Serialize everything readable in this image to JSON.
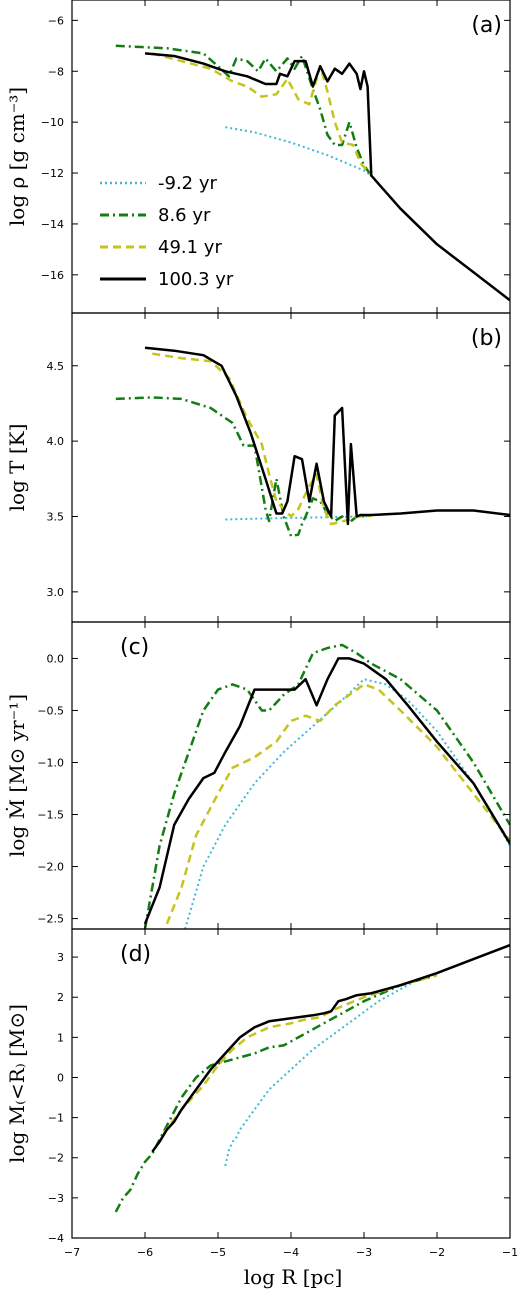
{
  "chart_data": {
    "type": "line",
    "xlabel": "log R [pc]",
    "xlim": [
      -7,
      -1
    ],
    "x_ticks": [
      "−7",
      "−6",
      "−5",
      "−4",
      "−3",
      "−2",
      "−1"
    ],
    "legend": {
      "placement": "inside panel (a), lower-left",
      "entries": [
        "-9.2 yr",
        "8.6 yr",
        "49.1 yr",
        "100.3 yr"
      ]
    },
    "series_styles": [
      {
        "name": "-9.2 yr",
        "color": "#3fb8d8",
        "dash": "dotted"
      },
      {
        "name": "8.6 yr",
        "color": "#137d13",
        "dash": "dashdot"
      },
      {
        "name": "49.1 yr",
        "color": "#c4c41c",
        "dash": "dashed"
      },
      {
        "name": "100.3 yr",
        "color": "#000000",
        "dash": "solid"
      }
    ],
    "panels": [
      {
        "id": "a",
        "tag": "(a)",
        "ylabel": "log ρ [g cm⁻³]",
        "ylim": [
          -17.5,
          -5.2
        ],
        "yticks": [
          -16,
          -14,
          -12,
          -10,
          -8,
          -6
        ],
        "ytick_labels": [
          "−16",
          "−14",
          "−12",
          "−10",
          "−8",
          "−6"
        ],
        "series": [
          {
            "name": "-9.2 yr",
            "x": [
              -4.9,
              -4.5,
              -4.0,
              -3.5,
              -3.0,
              -2.9
            ],
            "y": [
              -10.2,
              -10.4,
              -10.8,
              -11.3,
              -11.9,
              -12.1
            ]
          },
          {
            "name": "8.6 yr",
            "x": [
              -6.4,
              -5.7,
              -5.2,
              -5.0,
              -4.85,
              -4.75,
              -4.6,
              -4.45,
              -4.35,
              -4.2,
              -4.05,
              -3.95,
              -3.85,
              -3.7,
              -3.6,
              -3.5,
              -3.4,
              -3.3,
              -3.2,
              -3.1,
              -3.0,
              -2.9
            ],
            "y": [
              -7.0,
              -7.1,
              -7.3,
              -7.8,
              -8.2,
              -7.5,
              -7.6,
              -8.0,
              -7.5,
              -8.0,
              -7.5,
              -7.9,
              -7.4,
              -8.7,
              -9.5,
              -10.5,
              -10.9,
              -10.9,
              -10.0,
              -11.0,
              -11.7,
              -12.1
            ]
          },
          {
            "name": "49.1 yr",
            "x": [
              -5.9,
              -5.5,
              -5.1,
              -4.8,
              -4.6,
              -4.4,
              -4.2,
              -4.05,
              -3.9,
              -3.75,
              -3.6,
              -3.5,
              -3.4,
              -3.3,
              -3.15,
              -3.05,
              -2.9
            ],
            "y": [
              -7.3,
              -7.6,
              -7.9,
              -8.4,
              -8.6,
              -9.0,
              -8.9,
              -8.3,
              -9.1,
              -9.3,
              -7.8,
              -8.8,
              -10.0,
              -10.8,
              -10.9,
              -11.6,
              -12.1
            ]
          },
          {
            "name": "100.3 yr",
            "x": [
              -6.0,
              -5.6,
              -5.2,
              -4.9,
              -4.6,
              -4.35,
              -4.2,
              -4.15,
              -4.05,
              -3.95,
              -3.8,
              -3.7,
              -3.6,
              -3.5,
              -3.4,
              -3.3,
              -3.2,
              -3.1,
              -3.05,
              -3.0,
              -2.95,
              -2.9,
              -2.5,
              -2.0,
              -1.5,
              -1.0
            ],
            "y": [
              -7.3,
              -7.4,
              -7.7,
              -8.0,
              -8.2,
              -8.5,
              -8.5,
              -8.1,
              -8.2,
              -7.6,
              -7.6,
              -8.6,
              -7.8,
              -8.4,
              -7.9,
              -8.1,
              -7.7,
              -8.1,
              -8.7,
              -8.0,
              -8.6,
              -12.1,
              -13.4,
              -14.8,
              -15.9,
              -17.0
            ]
          }
        ]
      },
      {
        "id": "b",
        "tag": "(b)",
        "ylabel": "log T [K]",
        "ylim": [
          2.8,
          4.85
        ],
        "yticks": [
          3.0,
          3.5,
          4.0,
          4.5
        ],
        "ytick_labels": [
          "3.0",
          "3.5",
          "4.0",
          "4.5"
        ],
        "series": [
          {
            "name": "-9.2 yr",
            "x": [
              -4.9,
              -4.5,
              -4.0,
              -3.5,
              -3.0,
              -2.9
            ],
            "y": [
              3.48,
              3.485,
              3.49,
              3.495,
              3.5,
              3.505
            ]
          },
          {
            "name": "8.6 yr",
            "x": [
              -6.4,
              -5.9,
              -5.5,
              -5.1,
              -4.8,
              -4.65,
              -4.5,
              -4.42,
              -4.35,
              -4.3,
              -4.2,
              -4.1,
              -4.0,
              -3.9,
              -3.85,
              -3.8,
              -3.7,
              -3.6,
              -3.5,
              -3.4,
              -3.3,
              -3.2,
              -3.1,
              -2.9
            ],
            "y": [
              4.28,
              4.29,
              4.28,
              4.22,
              4.12,
              3.97,
              3.97,
              3.75,
              3.55,
              3.47,
              3.75,
              3.5,
              3.37,
              3.38,
              3.45,
              3.5,
              3.62,
              3.6,
              3.52,
              3.47,
              3.5,
              3.46,
              3.5,
              3.505
            ]
          },
          {
            "name": "49.1 yr",
            "x": [
              -5.9,
              -5.5,
              -5.1,
              -4.85,
              -4.6,
              -4.4,
              -4.3,
              -4.2,
              -4.1,
              -4.0,
              -3.9,
              -3.75,
              -3.65,
              -3.55,
              -3.45,
              -3.35,
              -3.2,
              -3.1,
              -2.9
            ],
            "y": [
              4.58,
              4.55,
              4.53,
              4.42,
              4.15,
              3.98,
              3.78,
              3.6,
              3.55,
              3.5,
              3.55,
              3.7,
              3.78,
              3.55,
              3.45,
              3.46,
              3.48,
              3.5,
              3.505
            ]
          },
          {
            "name": "100.3 yr",
            "x": [
              -6.0,
              -5.6,
              -5.2,
              -4.95,
              -4.75,
              -4.55,
              -4.35,
              -4.2,
              -4.12,
              -4.05,
              -3.95,
              -3.85,
              -3.75,
              -3.65,
              -3.55,
              -3.45,
              -3.4,
              -3.3,
              -3.22,
              -3.18,
              -3.1,
              -3.05,
              -2.9,
              -2.5,
              -2.0,
              -1.5,
              -1.0
            ],
            "y": [
              4.62,
              4.6,
              4.57,
              4.5,
              4.3,
              4.05,
              3.75,
              3.52,
              3.52,
              3.6,
              3.9,
              3.88,
              3.6,
              3.85,
              3.6,
              3.5,
              4.17,
              4.22,
              3.45,
              3.98,
              3.5,
              3.51,
              3.51,
              3.52,
              3.54,
              3.54,
              3.51
            ]
          }
        ]
      },
      {
        "id": "c",
        "tag": "(c)",
        "ylabel": "log Ṁ [M⊙ yr⁻¹]",
        "ylim": [
          -2.6,
          0.35
        ],
        "yticks": [
          -2.5,
          -2.0,
          -1.5,
          -1.0,
          -0.5,
          0.0
        ],
        "ytick_labels": [
          "−2.5",
          "−2.0",
          "−1.5",
          "−1.0",
          "−0.5",
          "0.0"
        ],
        "series": [
          {
            "name": "-9.2 yr",
            "x": [
              -5.45,
              -5.2,
              -4.9,
              -4.5,
              -4.1,
              -3.7,
              -3.3,
              -3.0,
              -2.7,
              -2.4,
              -2.0,
              -1.5,
              -1.0
            ],
            "y": [
              -2.6,
              -2.0,
              -1.6,
              -1.2,
              -0.9,
              -0.65,
              -0.4,
              -0.2,
              -0.25,
              -0.4,
              -0.7,
              -1.2,
              -1.8
            ]
          },
          {
            "name": "8.6 yr",
            "x": [
              -6.0,
              -5.8,
              -5.6,
              -5.4,
              -5.2,
              -5.0,
              -4.8,
              -4.6,
              -4.4,
              -4.3,
              -4.1,
              -3.9,
              -3.7,
              -3.5,
              -3.3,
              -3.1,
              -2.9,
              -2.5,
              -2.0,
              -1.5,
              -1.0
            ],
            "y": [
              -2.6,
              -1.8,
              -1.3,
              -0.9,
              -0.5,
              -0.3,
              -0.25,
              -0.3,
              -0.5,
              -0.5,
              -0.35,
              -0.25,
              0.05,
              0.1,
              0.13,
              0.05,
              -0.05,
              -0.2,
              -0.5,
              -1.0,
              -1.6
            ]
          },
          {
            "name": "49.1 yr",
            "x": [
              -5.7,
              -5.5,
              -5.3,
              -5.0,
              -4.8,
              -4.5,
              -4.2,
              -4.0,
              -3.8,
              -3.6,
              -3.4,
              -3.2,
              -3.0,
              -2.8,
              -2.5,
              -2.0,
              -1.5,
              -1.0
            ],
            "y": [
              -2.55,
              -2.2,
              -1.7,
              -1.3,
              -1.05,
              -0.95,
              -0.8,
              -0.6,
              -0.55,
              -0.6,
              -0.45,
              -0.35,
              -0.25,
              -0.3,
              -0.5,
              -0.85,
              -1.3,
              -1.75
            ]
          },
          {
            "name": "100.3 yr",
            "x": [
              -6.0,
              -5.8,
              -5.6,
              -5.4,
              -5.2,
              -5.05,
              -4.9,
              -4.7,
              -4.5,
              -4.3,
              -4.1,
              -3.95,
              -3.8,
              -3.65,
              -3.5,
              -3.35,
              -3.2,
              -3.0,
              -2.9,
              -2.7,
              -2.4,
              -2.0,
              -1.5,
              -1.0
            ],
            "y": [
              -2.55,
              -2.2,
              -1.6,
              -1.35,
              -1.15,
              -1.1,
              -0.9,
              -0.65,
              -0.3,
              -0.3,
              -0.3,
              -0.3,
              -0.2,
              -0.45,
              -0.2,
              0.0,
              0.0,
              -0.05,
              -0.1,
              -0.2,
              -0.45,
              -0.8,
              -1.2,
              -1.78
            ]
          }
        ]
      },
      {
        "id": "d",
        "tag": "(d)",
        "ylabel": "log M₍<R₎ [M⊙]",
        "ylim": [
          -4.0,
          3.7
        ],
        "yticks": [
          -4,
          -3,
          -2,
          -1,
          0,
          1,
          2,
          3
        ],
        "ytick_labels": [
          "−4",
          "−3",
          "−2",
          "−1",
          "0",
          "1",
          "2",
          "3"
        ],
        "series": [
          {
            "name": "-9.2 yr",
            "x": [
              -4.9,
              -4.85,
              -4.8,
              -4.75,
              -4.7,
              -4.5,
              -4.3,
              -4.0,
              -3.7,
              -3.4,
              -3.1,
              -2.8,
              -2.5,
              -2.2
            ],
            "y": [
              -2.2,
              -1.8,
              -1.6,
              -1.5,
              -1.3,
              -0.8,
              -0.3,
              0.2,
              0.7,
              1.1,
              1.5,
              1.9,
              2.2,
              2.5
            ]
          },
          {
            "name": "8.6 yr",
            "x": [
              -6.4,
              -6.3,
              -6.2,
              -6.1,
              -6.0,
              -5.9,
              -5.7,
              -5.5,
              -5.3,
              -5.1,
              -4.9,
              -4.7,
              -4.5,
              -4.3,
              -4.1,
              -3.9,
              -3.6,
              -3.3,
              -3.0,
              -2.5,
              -2.0
            ],
            "y": [
              -3.35,
              -3.0,
              -2.8,
              -2.4,
              -2.1,
              -1.9,
              -1.2,
              -0.5,
              0.0,
              0.3,
              0.4,
              0.5,
              0.6,
              0.75,
              0.8,
              1.0,
              1.3,
              1.6,
              1.9,
              2.3,
              2.55
            ]
          },
          {
            "name": "49.1 yr",
            "x": [
              -5.75,
              -5.5,
              -5.2,
              -5.0,
              -4.8,
              -4.6,
              -4.3,
              -4.0,
              -3.8,
              -3.6,
              -3.4,
              -3.2,
              -3.0,
              -2.5,
              -2.0
            ],
            "y": [
              -1.4,
              -0.8,
              -0.2,
              0.3,
              0.7,
              1.0,
              1.25,
              1.35,
              1.45,
              1.5,
              1.7,
              1.85,
              2.0,
              2.3,
              2.55
            ]
          },
          {
            "name": "100.3 yr",
            "x": [
              -5.9,
              -5.8,
              -5.7,
              -5.6,
              -5.5,
              -5.3,
              -5.1,
              -4.9,
              -4.7,
              -4.5,
              -4.3,
              -4.1,
              -3.9,
              -3.7,
              -3.55,
              -3.45,
              -3.35,
              -3.25,
              -3.1,
              -2.9,
              -2.5,
              -2.0,
              -1.5,
              -1.0
            ],
            "y": [
              -1.85,
              -1.6,
              -1.3,
              -1.1,
              -0.8,
              -0.3,
              0.2,
              0.6,
              1.0,
              1.25,
              1.4,
              1.45,
              1.5,
              1.55,
              1.6,
              1.65,
              1.9,
              1.95,
              2.05,
              2.1,
              2.3,
              2.6,
              2.95,
              3.3
            ]
          }
        ]
      }
    ]
  }
}
